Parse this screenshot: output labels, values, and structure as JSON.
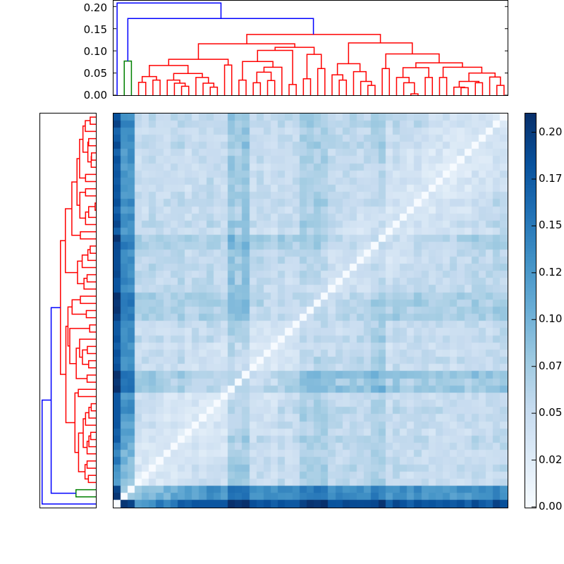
{
  "chart_data": [
    {
      "type": "heatmap",
      "title": "",
      "description": "Clustered distance matrix (55 x 55) ordered by dendrogram leaves; rows top-to-bottom correspond to leaves 54..0, columns left-to-right to leaves 0..54",
      "n_leaves": 55,
      "colormap": "Blues",
      "vmin": 0.0,
      "vmax": 0.21,
      "diagonal": 0.0,
      "leaf_profile": [
        1.55,
        1.05,
        1.05,
        0.25,
        0.25,
        0.3,
        0.25,
        0.22,
        0.25,
        0.3,
        0.22,
        0.25,
        0.25,
        0.3,
        0.25,
        0.22,
        0.55,
        0.45,
        0.55,
        0.22,
        0.3,
        0.25,
        0.22,
        0.3,
        0.25,
        0.28,
        0.45,
        0.42,
        0.45,
        0.45,
        0.32,
        0.3,
        0.3,
        0.32,
        0.3,
        0.3,
        0.42,
        0.45,
        0.22,
        0.3,
        0.25,
        0.22,
        0.3,
        0.25,
        0.22,
        0.25,
        0.22,
        0.22,
        0.25,
        0.22,
        0.3,
        0.25,
        0.25,
        0.32,
        0.3
      ],
      "scale_k": 0.1,
      "near_diagonal_lightening": {
        "base": 0.6,
        "span": 12
      },
      "jitter": 0.012,
      "overrides": [
        [
          1,
          2,
          0.078
        ],
        [
          0,
          1,
          0.205
        ],
        [
          0,
          2,
          0.195
        ]
      ],
      "colorbar": {
        "ticks": [
          0.0,
          0.025,
          0.05,
          0.075,
          0.1,
          0.125,
          0.15,
          0.175,
          0.2
        ],
        "tick_labels": [
          "0.00",
          "0.02",
          "0.05",
          "0.07",
          "0.10",
          "0.12",
          "0.15",
          "0.17",
          "0.20"
        ]
      }
    },
    {
      "type": "dendrogram",
      "orientation": "top",
      "ylabel": "",
      "ylim": [
        0.0,
        0.21
      ],
      "yticks": [
        0.0,
        0.05,
        0.1,
        0.15,
        0.2
      ],
      "ytick_labels": [
        "0.00",
        "0.05",
        "0.10",
        "0.15",
        "0.20"
      ],
      "colors": {
        "b": "#0000ff",
        "g": "#008000",
        "r": "#ff0000"
      },
      "links_note": "each link: [left_x_leafunits, right_x_leafunits, left_bottom_h, right_bottom_h, top_h, color]",
      "links": [
        [
          3,
          4,
          0,
          0,
          0.029,
          "r"
        ],
        [
          5,
          6,
          0,
          0,
          0.034,
          "r"
        ],
        [
          3.5,
          5.5,
          0.029,
          0.034,
          0.042,
          "r"
        ],
        [
          9,
          10,
          0,
          0,
          0.02,
          "r"
        ],
        [
          8,
          9.5,
          0,
          0.02,
          0.027,
          "r"
        ],
        [
          7,
          8.75,
          0,
          0.027,
          0.034,
          "r"
        ],
        [
          13,
          14,
          0,
          0,
          0.018,
          "r"
        ],
        [
          12,
          13.5,
          0,
          0.018,
          0.027,
          "r"
        ],
        [
          11,
          12.75,
          0,
          0.027,
          0.04,
          "r"
        ],
        [
          7.9,
          11.9,
          0.034,
          0.04,
          0.049,
          "r"
        ],
        [
          4.5,
          9.9,
          0.042,
          0.049,
          0.067,
          "r"
        ],
        [
          15,
          16,
          0,
          0,
          0.068,
          "r"
        ],
        [
          7.2,
          15.5,
          0.067,
          0.068,
          0.081,
          "r"
        ],
        [
          17,
          18,
          0,
          0,
          0.034,
          "r"
        ],
        [
          19,
          20,
          0,
          0,
          0.028,
          "r"
        ],
        [
          21,
          22,
          0,
          0,
          0.033,
          "r"
        ],
        [
          19.5,
          21.5,
          0.028,
          0.033,
          0.052,
          "r"
        ],
        [
          20.5,
          23,
          0.052,
          0,
          0.063,
          "r"
        ],
        [
          17.5,
          21.75,
          0.034,
          0.063,
          0.076,
          "r"
        ],
        [
          24,
          25,
          0,
          0,
          0.024,
          "r"
        ],
        [
          26,
          27,
          0,
          0,
          0.037,
          "r"
        ],
        [
          28,
          29,
          0,
          0,
          0.06,
          "r"
        ],
        [
          26.5,
          28.5,
          0.037,
          0.06,
          0.092,
          "r"
        ],
        [
          19.6,
          24.5,
          0.076,
          0.024,
          0.101,
          "r"
        ],
        [
          22.05,
          27.5,
          0.101,
          0.092,
          0.108,
          "r"
        ],
        [
          11.35,
          24.8,
          0.081,
          0.108,
          0.116,
          "r"
        ],
        [
          31,
          32,
          0,
          0,
          0.034,
          "r"
        ],
        [
          30,
          31.5,
          0,
          0.034,
          0.046,
          "r"
        ],
        [
          35,
          36,
          0,
          0,
          0.022,
          "r"
        ],
        [
          34,
          35.5,
          0,
          0.022,
          0.031,
          "r"
        ],
        [
          33,
          34.75,
          0,
          0.031,
          0.053,
          "r"
        ],
        [
          30.75,
          33.9,
          0.046,
          0.053,
          0.071,
          "r"
        ],
        [
          37,
          38,
          0,
          0,
          0.06,
          "r"
        ],
        [
          41,
          42,
          0,
          0,
          0.003,
          "r"
        ],
        [
          40,
          41.5,
          0,
          0.003,
          0.028,
          "r"
        ],
        [
          39,
          40.75,
          0,
          0.028,
          0.04,
          "r"
        ],
        [
          43,
          44,
          0,
          0,
          0.04,
          "r"
        ],
        [
          39.9,
          43.5,
          0.04,
          0.04,
          0.062,
          "r"
        ],
        [
          45,
          46,
          0,
          0,
          0.04,
          "r"
        ],
        [
          48,
          49,
          0,
          0,
          0.017,
          "r"
        ],
        [
          47,
          48.5,
          0,
          0.017,
          0.018,
          "r"
        ],
        [
          50,
          51,
          0,
          0,
          0.028,
          "r"
        ],
        [
          47.75,
          50.5,
          0.018,
          0.028,
          0.031,
          "r"
        ],
        [
          53,
          54,
          0,
          0,
          0.022,
          "r"
        ],
        [
          52,
          53.5,
          0,
          0.022,
          0.041,
          "r"
        ],
        [
          49.1,
          52.75,
          0.031,
          0.041,
          0.05,
          "r"
        ],
        [
          45.5,
          50.9,
          0.04,
          0.05,
          0.063,
          "r"
        ],
        [
          41.7,
          48.2,
          0.062,
          0.063,
          0.073,
          "r"
        ],
        [
          37.5,
          44.95,
          0.06,
          0.073,
          0.093,
          "r"
        ],
        [
          32.3,
          41.2,
          0.071,
          0.093,
          0.118,
          "r"
        ],
        [
          18.1,
          36.75,
          0.116,
          0.118,
          0.137,
          "r"
        ],
        [
          1,
          2,
          0,
          0,
          0.077,
          "g"
        ],
        [
          1.5,
          27.4,
          0.077,
          0.137,
          0.173,
          "b"
        ],
        [
          0,
          14.5,
          0,
          0.173,
          0.208,
          "b"
        ]
      ]
    },
    {
      "type": "dendrogram",
      "orientation": "left",
      "xlim": [
        0.21,
        0.0
      ],
      "note": "same linkage tree as top dendrogram, drawn horizontally; leaf 0 at bottom",
      "ticks_visible": false
    }
  ]
}
